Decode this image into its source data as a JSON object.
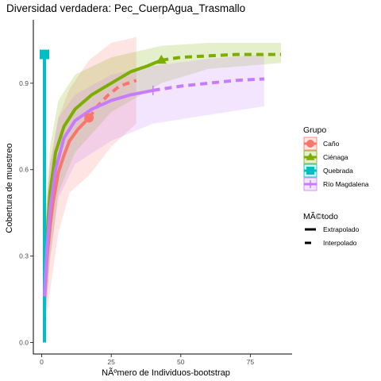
{
  "chart_data": {
    "type": "line",
    "title": "Diversidad verdadera: Pec_CuerpAgua_Trasmallo",
    "xlabel": "NÃºmero de Individuos-bootstrap",
    "ylabel": "Cobertura de muestreo",
    "xlim": [
      -3,
      90
    ],
    "ylim": [
      -0.04,
      1.12
    ],
    "x_ticks": [
      0,
      25,
      50,
      75
    ],
    "x_tick_labels": [
      "0",
      "25",
      "50",
      "75"
    ],
    "y_ticks": [
      0.0,
      0.3,
      0.6,
      0.9
    ],
    "y_tick_labels": [
      "0.0",
      "0.3",
      "0.6",
      "0.9"
    ],
    "grid": false,
    "legend_groups": {
      "title": "Grupo",
      "entries": [
        "Caño",
        "Ciénaga",
        "Quebrada",
        "Río Magdalena"
      ]
    },
    "legend_method": {
      "title": "MÃ©todo",
      "entries": [
        "Extrapolado",
        "Interpolado"
      ]
    },
    "series": [
      {
        "name": "Caño",
        "color": "#F8766D",
        "marker": "circle",
        "observed": [
          17,
          0.78
        ],
        "interpolated": [
          [
            1,
            0.15
          ],
          [
            2,
            0.3
          ],
          [
            3,
            0.4
          ],
          [
            4,
            0.48
          ],
          [
            6,
            0.59
          ],
          [
            8,
            0.65
          ],
          [
            10,
            0.7
          ],
          [
            13,
            0.74
          ],
          [
            17,
            0.78
          ]
        ],
        "extrapolated": [
          [
            17,
            0.78
          ],
          [
            20,
            0.82
          ],
          [
            24,
            0.86
          ],
          [
            28,
            0.89
          ],
          [
            34,
            0.91
          ]
        ],
        "band_upper": [
          [
            1,
            0.42
          ],
          [
            3,
            0.62
          ],
          [
            6,
            0.78
          ],
          [
            10,
            0.88
          ],
          [
            17,
            0.98
          ],
          [
            25,
            1.04
          ],
          [
            34,
            1.06
          ]
        ],
        "band_lower": [
          [
            1,
            0.02
          ],
          [
            3,
            0.18
          ],
          [
            6,
            0.38
          ],
          [
            10,
            0.52
          ],
          [
            17,
            0.58
          ],
          [
            25,
            0.68
          ],
          [
            34,
            0.76
          ]
        ]
      },
      {
        "name": "Ciénaga",
        "color": "#7CAE00",
        "marker": "triangle",
        "observed": [
          43,
          0.98
        ],
        "interpolated": [
          [
            1,
            0.16
          ],
          [
            2,
            0.38
          ],
          [
            3,
            0.52
          ],
          [
            5,
            0.66
          ],
          [
            8,
            0.75
          ],
          [
            12,
            0.81
          ],
          [
            18,
            0.86
          ],
          [
            25,
            0.9
          ],
          [
            32,
            0.94
          ],
          [
            38,
            0.96
          ],
          [
            43,
            0.98
          ]
        ],
        "extrapolated": [
          [
            43,
            0.98
          ],
          [
            50,
            0.99
          ],
          [
            60,
            0.995
          ],
          [
            70,
            1.0
          ],
          [
            80,
            1.0
          ],
          [
            86,
            1.0
          ]
        ],
        "band_upper": [
          [
            1,
            0.36
          ],
          [
            3,
            0.68
          ],
          [
            6,
            0.84
          ],
          [
            12,
            0.93
          ],
          [
            25,
            0.99
          ],
          [
            43,
            1.03
          ],
          [
            60,
            1.04
          ],
          [
            86,
            1.04
          ]
        ],
        "band_lower": [
          [
            1,
            0.04
          ],
          [
            3,
            0.28
          ],
          [
            6,
            0.52
          ],
          [
            12,
            0.66
          ],
          [
            25,
            0.8
          ],
          [
            43,
            0.9
          ],
          [
            60,
            0.95
          ],
          [
            86,
            0.97
          ]
        ]
      },
      {
        "name": "Quebrada",
        "color": "#00BFC4",
        "marker": "square",
        "observed": [
          1,
          1.0
        ],
        "interpolated": [
          [
            1,
            0.0
          ],
          [
            1,
            1.0
          ]
        ],
        "extrapolated": [
          [
            1,
            1.0
          ],
          [
            1,
            1.0
          ]
        ],
        "band_upper": [
          [
            0.6,
            1.0
          ],
          [
            1.4,
            1.0
          ]
        ],
        "band_lower": [
          [
            0.6,
            0.0
          ],
          [
            1.4,
            0.0
          ]
        ]
      },
      {
        "name": "Río Magdalena",
        "color": "#C77CFF",
        "marker": "cross",
        "observed": [
          40,
          0.875
        ],
        "interpolated": [
          [
            1,
            0.16
          ],
          [
            2,
            0.34
          ],
          [
            3,
            0.46
          ],
          [
            5,
            0.6
          ],
          [
            8,
            0.71
          ],
          [
            12,
            0.77
          ],
          [
            18,
            0.81
          ],
          [
            25,
            0.84
          ],
          [
            32,
            0.86
          ],
          [
            40,
            0.875
          ]
        ],
        "extrapolated": [
          [
            40,
            0.875
          ],
          [
            50,
            0.89
          ],
          [
            60,
            0.9
          ],
          [
            70,
            0.91
          ],
          [
            80,
            0.915
          ]
        ],
        "band_upper": [
          [
            1,
            0.35
          ],
          [
            3,
            0.62
          ],
          [
            6,
            0.78
          ],
          [
            12,
            0.86
          ],
          [
            25,
            0.93
          ],
          [
            40,
            0.96
          ],
          [
            60,
            0.985
          ],
          [
            80,
            1.0
          ]
        ],
        "band_lower": [
          [
            1,
            0.02
          ],
          [
            3,
            0.3
          ],
          [
            6,
            0.5
          ],
          [
            12,
            0.62
          ],
          [
            25,
            0.7
          ],
          [
            40,
            0.76
          ],
          [
            60,
            0.79
          ],
          [
            80,
            0.82
          ]
        ]
      }
    ]
  }
}
